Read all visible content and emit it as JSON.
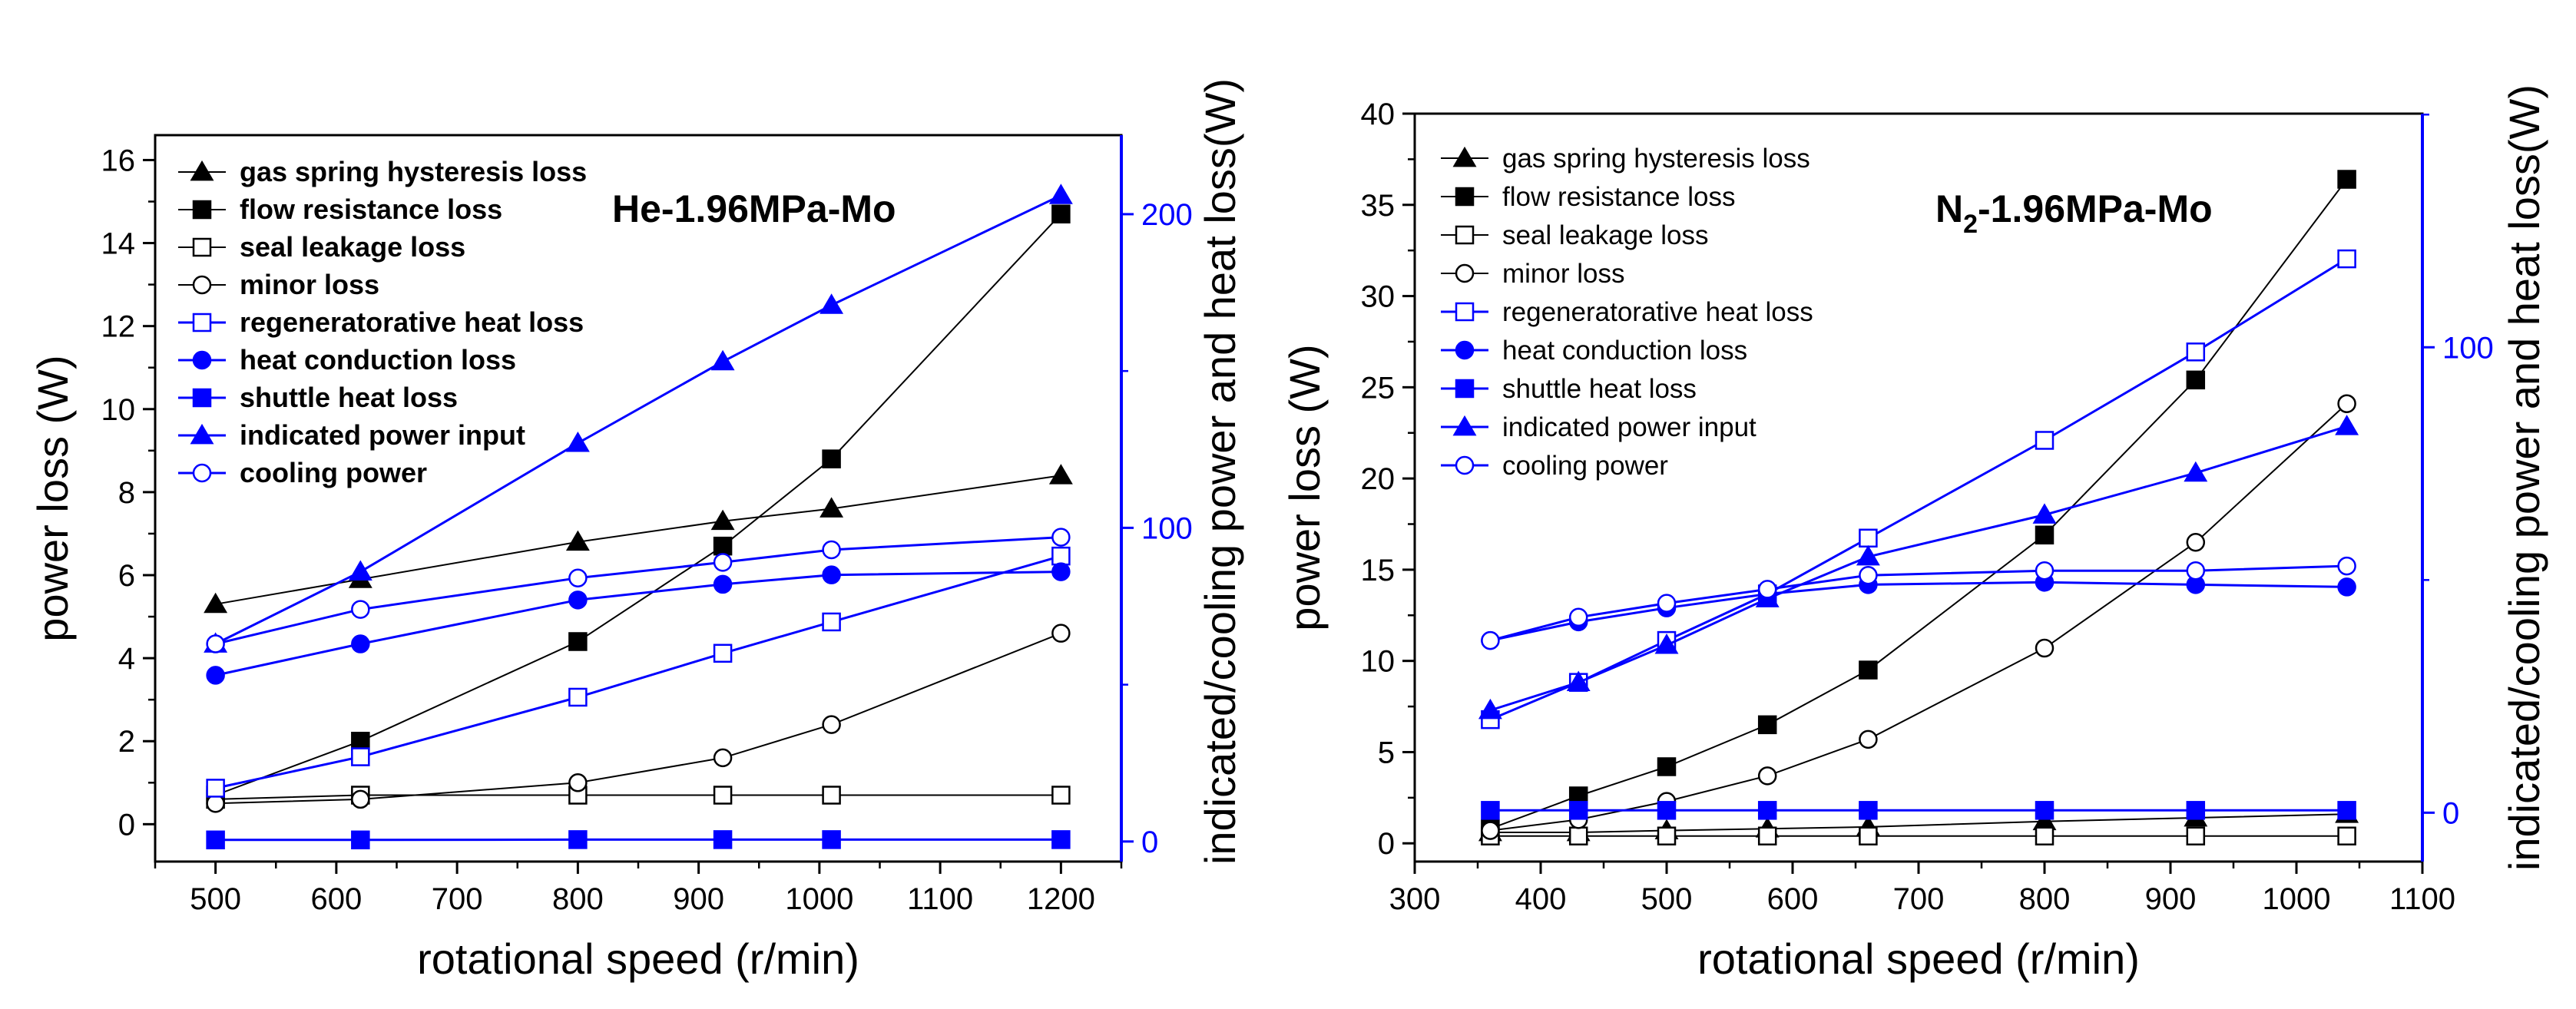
{
  "chart_data": [
    {
      "id": "he",
      "type": "line",
      "title": "He-1.96MPa-Mo",
      "title_sub": "",
      "title_rest": "",
      "xlabel": "rotational speed (r/min)",
      "ylabel": "power loss (W)",
      "y2label": "indicated/cooling power and heat loss(W)",
      "xlim": [
        450,
        1250
      ],
      "ylim": [
        -0.9,
        16.6
      ],
      "y2lim": [
        -6.4,
        225.2
      ],
      "xticks": [
        500,
        600,
        700,
        800,
        900,
        1000,
        1100,
        1200
      ],
      "yticks": [
        0,
        2,
        4,
        6,
        8,
        10,
        12,
        14,
        16
      ],
      "y2ticks": [
        0,
        100,
        200
      ],
      "series": [
        {
          "name": "gas spring hysteresis loss",
          "axis": "left",
          "color": "#000000",
          "marker": "triangle",
          "filled": true,
          "x": [
            500,
            620,
            800,
            920,
            1010,
            1200
          ],
          "values": [
            5.3,
            5.9,
            6.8,
            7.3,
            7.6,
            8.4
          ]
        },
        {
          "name": "flow resistance loss",
          "axis": "left",
          "color": "#000000",
          "marker": "square",
          "filled": true,
          "x": [
            500,
            620,
            800,
            920,
            1010,
            1200
          ],
          "values": [
            0.7,
            2.0,
            4.4,
            6.7,
            8.8,
            14.7
          ]
        },
        {
          "name": "seal leakage loss",
          "axis": "left",
          "color": "#000000",
          "marker": "square",
          "filled": false,
          "x": [
            500,
            620,
            800,
            920,
            1010,
            1200
          ],
          "values": [
            0.6,
            0.7,
            0.7,
            0.7,
            0.7,
            0.7
          ]
        },
        {
          "name": "minor loss",
          "axis": "left",
          "color": "#000000",
          "marker": "circle",
          "filled": false,
          "x": [
            500,
            620,
            800,
            920,
            1010,
            1200
          ],
          "values": [
            0.5,
            0.6,
            1.0,
            1.6,
            2.4,
            4.6
          ]
        },
        {
          "name": "regeneratorative heat loss",
          "axis": "right",
          "color": "#0000ff",
          "marker": "square",
          "filled": false,
          "x": [
            500,
            620,
            800,
            920,
            1010,
            1200
          ],
          "values": [
            17,
            27,
            46,
            60,
            70,
            91
          ]
        },
        {
          "name": "heat conduction loss",
          "axis": "right",
          "color": "#0000ff",
          "marker": "circle",
          "filled": true,
          "x": [
            500,
            620,
            800,
            920,
            1010,
            1200
          ],
          "values": [
            53,
            63,
            77,
            82,
            85,
            86
          ]
        },
        {
          "name": "shuttle heat loss",
          "axis": "right",
          "color": "#0000ff",
          "marker": "square",
          "filled": true,
          "x": [
            500,
            620,
            800,
            920,
            1010,
            1200
          ],
          "values": [
            0.5,
            0.5,
            0.6,
            0.6,
            0.6,
            0.6
          ]
        },
        {
          "name": "indicated power input",
          "axis": "right",
          "color": "#0000ff",
          "marker": "triangle",
          "filled": true,
          "x": [
            500,
            620,
            800,
            920,
            1010,
            1200
          ],
          "values": [
            63,
            86,
            127,
            153,
            171,
            206
          ]
        },
        {
          "name": "cooling power",
          "axis": "right",
          "color": "#0000ff",
          "marker": "circle",
          "filled": false,
          "x": [
            500,
            620,
            800,
            920,
            1010,
            1200
          ],
          "values": [
            63,
            74,
            84,
            89,
            93,
            97
          ]
        }
      ]
    },
    {
      "id": "n2",
      "type": "line",
      "title": "N",
      "title_sub": "2",
      "title_rest": "-1.96MPa-Mo",
      "xlabel": "rotational speed (r/min)",
      "ylabel": "power loss (W)",
      "y2label": "indicated/cooling power and heat loss(W)",
      "xlim": [
        300,
        1100
      ],
      "ylim": [
        -1.0,
        40
      ],
      "y2lim": [
        -10.5,
        150.2
      ],
      "xticks": [
        300,
        400,
        500,
        600,
        700,
        800,
        900,
        1000,
        1100
      ],
      "yticks": [
        0,
        5,
        10,
        15,
        20,
        25,
        30,
        35,
        40
      ],
      "y2ticks": [
        0,
        100
      ],
      "series": [
        {
          "name": "gas spring hysteresis loss",
          "axis": "left",
          "color": "#000000",
          "marker": "triangle",
          "filled": true,
          "x": [
            360,
            430,
            500,
            580,
            660,
            800,
            920,
            1040
          ],
          "values": [
            0.6,
            0.6,
            0.7,
            0.8,
            0.9,
            1.2,
            1.4,
            1.6
          ]
        },
        {
          "name": "flow resistance loss",
          "axis": "left",
          "color": "#000000",
          "marker": "square",
          "filled": true,
          "x": [
            360,
            430,
            500,
            580,
            660,
            800,
            920,
            1040
          ],
          "values": [
            0.8,
            2.6,
            4.2,
            6.5,
            9.5,
            16.9,
            25.4,
            36.4
          ]
        },
        {
          "name": "seal leakage loss",
          "axis": "left",
          "color": "#000000",
          "marker": "square",
          "filled": false,
          "x": [
            360,
            430,
            500,
            580,
            660,
            800,
            920,
            1040
          ],
          "values": [
            0.4,
            0.4,
            0.4,
            0.4,
            0.4,
            0.4,
            0.4,
            0.4
          ]
        },
        {
          "name": "minor loss",
          "axis": "left",
          "color": "#000000",
          "marker": "circle",
          "filled": false,
          "x": [
            360,
            430,
            500,
            580,
            660,
            800,
            920,
            1040
          ],
          "values": [
            0.7,
            1.3,
            2.3,
            3.7,
            5.7,
            10.7,
            16.5,
            24.1
          ]
        },
        {
          "name": "regeneratorative heat loss",
          "axis": "right",
          "color": "#0000ff",
          "marker": "square",
          "filled": false,
          "x": [
            360,
            430,
            500,
            580,
            660,
            800,
            920,
            1040
          ],
          "values": [
            20,
            28,
            37,
            47,
            59,
            80,
            99,
            119
          ]
        },
        {
          "name": "heat conduction loss",
          "axis": "right",
          "color": "#0000ff",
          "marker": "circle",
          "filled": true,
          "x": [
            360,
            430,
            500,
            580,
            660,
            800,
            920,
            1040
          ],
          "values": [
            37,
            41,
            44,
            47,
            49,
            49.5,
            49,
            48.5
          ]
        },
        {
          "name": "shuttle heat loss",
          "axis": "right",
          "color": "#0000ff",
          "marker": "square",
          "filled": true,
          "x": [
            360,
            430,
            500,
            580,
            660,
            800,
            920,
            1040
          ],
          "values": [
            0.5,
            0.5,
            0.5,
            0.5,
            0.5,
            0.5,
            0.5,
            0.5
          ]
        },
        {
          "name": "indicated power input",
          "axis": "right",
          "color": "#0000ff",
          "marker": "triangle",
          "filled": true,
          "x": [
            360,
            430,
            500,
            580,
            660,
            800,
            920,
            1040
          ],
          "values": [
            22,
            28,
            36,
            46,
            55,
            64,
            73,
            83
          ]
        },
        {
          "name": "cooling power",
          "axis": "right",
          "color": "#0000ff",
          "marker": "circle",
          "filled": false,
          "x": [
            360,
            430,
            500,
            580,
            660,
            800,
            920,
            1040
          ],
          "values": [
            37,
            42,
            45,
            48,
            51,
            52,
            52,
            53
          ]
        }
      ]
    }
  ]
}
